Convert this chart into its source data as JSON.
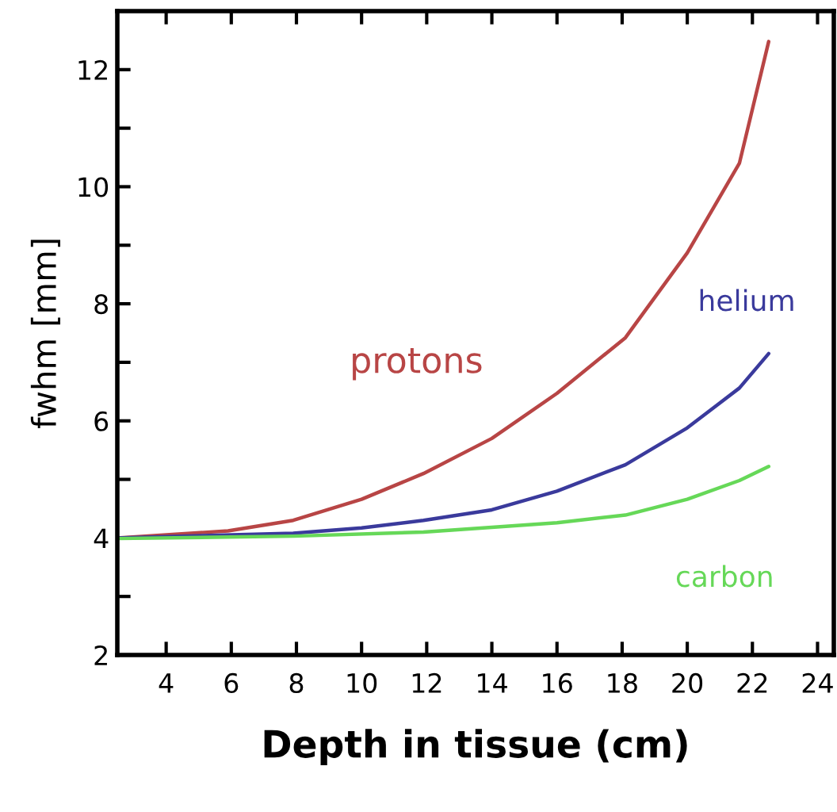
{
  "chart_data": {
    "type": "line",
    "xlabel": "Depth in tissue (cm)",
    "ylabel": "fwhm [mm]",
    "xlim": [
      2.5,
      24.5
    ],
    "ylim": [
      2,
      13
    ],
    "xticks": [
      4,
      6,
      8,
      10,
      12,
      14,
      16,
      18,
      20,
      22,
      24
    ],
    "yticks": [
      2,
      {
        "value": 3,
        "label": null
      },
      4,
      {
        "value": 5,
        "label": null
      },
      6,
      {
        "value": 7,
        "label": null
      },
      8,
      {
        "value": 9,
        "label": null
      },
      10,
      {
        "value": 11,
        "label": null
      },
      12
    ],
    "grid": false,
    "legend": false,
    "marker": "none",
    "line_style": "solid",
    "series": [
      {
        "name": "protons",
        "color": "#b84545",
        "x": [
          2.5,
          5.9,
          7.9,
          10,
          11.9,
          14,
          16,
          18.1,
          20,
          21.6,
          22.5
        ],
        "values": [
          4.0,
          4.12,
          4.3,
          4.66,
          5.1,
          5.7,
          6.47,
          7.42,
          8.87,
          10.4,
          12.48
        ]
      },
      {
        "name": "helium",
        "color": "#3a3a9c",
        "x": [
          2.5,
          7.9,
          10,
          11.9,
          14,
          16,
          18.1,
          20,
          21.6,
          22.5
        ],
        "values": [
          4.0,
          4.08,
          4.17,
          4.3,
          4.48,
          4.8,
          5.25,
          5.88,
          6.56,
          7.15
        ]
      },
      {
        "name": "carbon",
        "color": "#66d858",
        "x": [
          2.5,
          7.9,
          11.9,
          16,
          18.1,
          20,
          21.6,
          22.5
        ],
        "values": [
          3.99,
          4.03,
          4.1,
          4.26,
          4.39,
          4.66,
          4.98,
          5.22
        ]
      }
    ]
  }
}
